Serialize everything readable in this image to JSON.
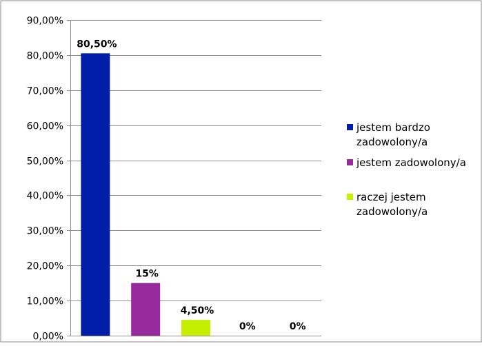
{
  "chart_data": {
    "type": "bar",
    "categories": [
      "jestem bardzo zadowolony/a",
      "jestem zadowolony/a",
      "raczej jestem zadowolony/a",
      "",
      ""
    ],
    "values": [
      80.5,
      15,
      4.5,
      0,
      0
    ],
    "data_labels": [
      "80,50%",
      "15%",
      "4,50%",
      "0%",
      "0%"
    ],
    "bar_colors": [
      "#001eaa",
      "#96299b",
      "#c5ee00",
      "#c0c0c0",
      "#c0c0c0"
    ],
    "ylim": [
      0,
      90
    ],
    "y_ticks": [
      0,
      10,
      20,
      30,
      40,
      50,
      60,
      70,
      80,
      90
    ],
    "y_tick_labels": [
      "0,00%",
      "10,00%",
      "20,00%",
      "30,00%",
      "40,00%",
      "50,00%",
      "60,00%",
      "70,00%",
      "80,00%",
      "90,00%"
    ],
    "grid": true,
    "legend_position": "right",
    "legend": [
      {
        "label_lines": [
          "jestem bardzo",
          "zadowolony/a"
        ],
        "color": "#001eaa"
      },
      {
        "label_lines": [
          "jestem zadowolony/a"
        ],
        "color": "#96299b"
      },
      {
        "label_lines": [
          "raczej jestem",
          "zadowolony/a"
        ],
        "color": "#c5ee00"
      }
    ],
    "title": "",
    "xlabel": "",
    "ylabel": ""
  }
}
